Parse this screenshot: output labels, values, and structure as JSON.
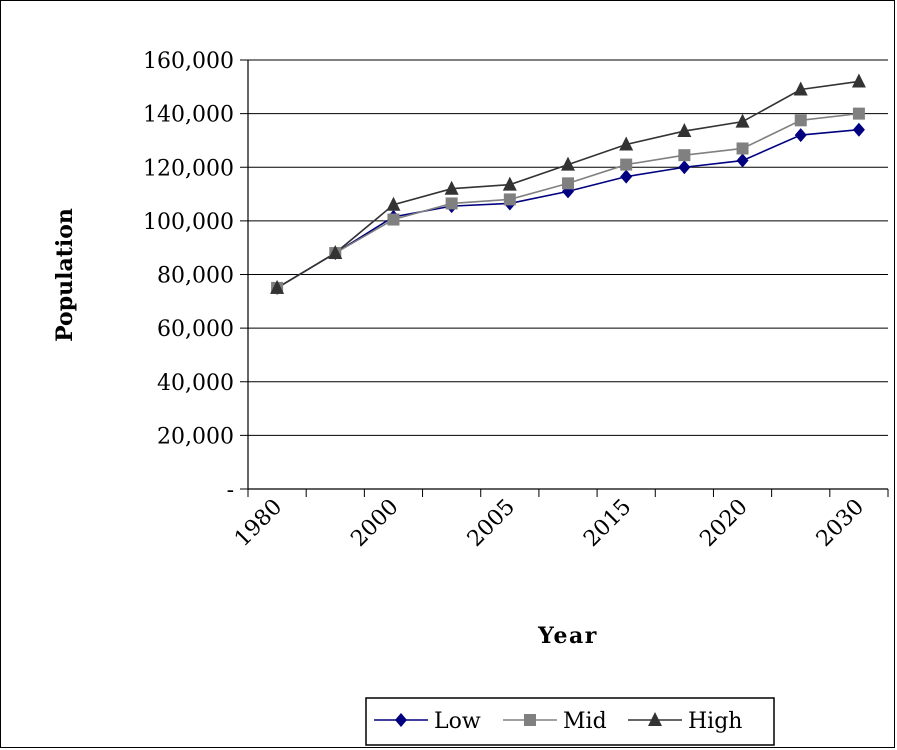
{
  "chart_data": {
    "type": "line",
    "xlabel": "Year",
    "ylabel": "Population",
    "ylim": [
      0,
      160000
    ],
    "y_ticks": [
      0,
      20000,
      40000,
      60000,
      80000,
      100000,
      120000,
      140000,
      160000
    ],
    "y_tick_labels": [
      "-",
      "20,000",
      "40,000",
      "60,000",
      "80,000",
      "100,000",
      "120,000",
      "140,000",
      "160,000"
    ],
    "x_tick_labels": [
      "1980",
      "2000",
      "2005",
      "2015",
      "2020",
      "2030"
    ],
    "grid": "horizontal",
    "legend_position": "bottom",
    "series": [
      {
        "name": "Low",
        "color": "#000080",
        "marker": "diamond",
        "values": [
          75000,
          88000,
          101500,
          105500,
          106500,
          111000,
          116500,
          120000,
          122500,
          132000,
          134000
        ]
      },
      {
        "name": "Mid",
        "color": "#808080",
        "marker": "square",
        "values": [
          75000,
          88000,
          100500,
          106500,
          108000,
          114000,
          121000,
          124500,
          127000,
          137500,
          140000
        ]
      },
      {
        "name": "High",
        "color": "#333333",
        "marker": "triangle",
        "values": [
          75000,
          88000,
          106000,
          112000,
          113500,
          121000,
          128500,
          133500,
          137000,
          149000,
          152000
        ]
      }
    ]
  }
}
